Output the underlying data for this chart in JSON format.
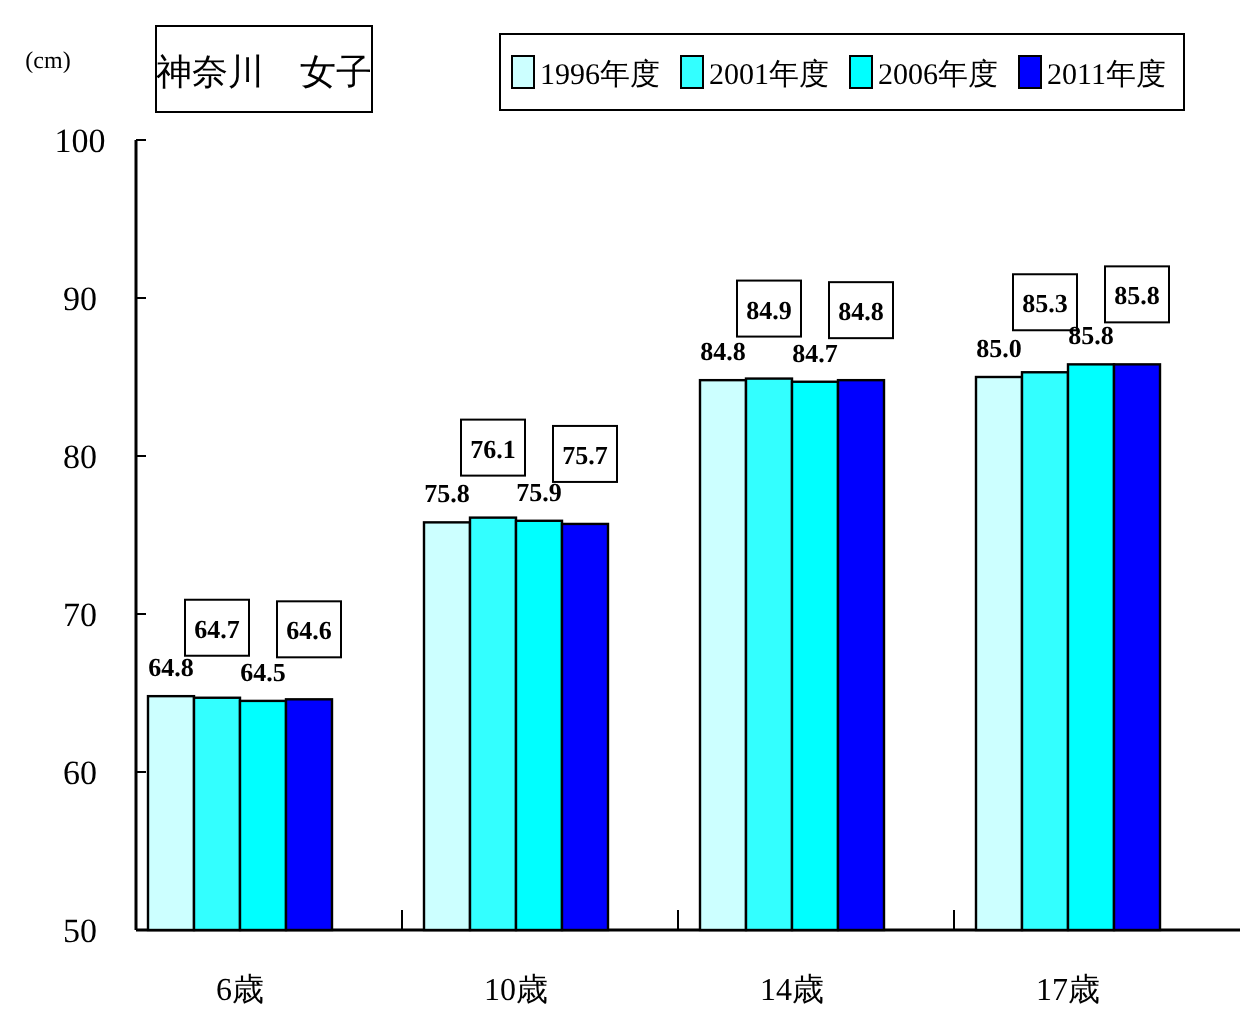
{
  "chart_data": {
    "type": "bar",
    "title": "神奈川　女子",
    "ylabel": "(cm)",
    "categories": [
      "6歳",
      "10歳",
      "14歳",
      "17歳"
    ],
    "series": [
      {
        "name": "1996年度",
        "color": "#ccffff",
        "values": [
          64.8,
          75.8,
          84.8,
          85.0
        ],
        "value_labels": [
          "64.8",
          "75.8",
          "84.8",
          "85.0"
        ]
      },
      {
        "name": "2001年度",
        "color": "#33ffff",
        "values": [
          64.7,
          76.1,
          84.9,
          85.3
        ],
        "value_labels": [
          "64.7",
          "76.1",
          "84.9",
          "85.3"
        ]
      },
      {
        "name": "2006年度",
        "color": "#00ffff",
        "values": [
          64.5,
          75.9,
          84.7,
          85.8
        ],
        "value_labels": [
          "64.5",
          "75.9",
          "84.7",
          "85.8"
        ]
      },
      {
        "name": "2011年度",
        "color": "#0000ff",
        "values": [
          64.6,
          75.7,
          84.8,
          85.8
        ],
        "value_labels": [
          "64.6",
          "75.7",
          "84.8",
          "85.8"
        ]
      }
    ],
    "ylim": [
      50,
      100
    ],
    "yticks": [
      50,
      60,
      70,
      80,
      90,
      100
    ],
    "legend": "top right",
    "grid": false
  }
}
